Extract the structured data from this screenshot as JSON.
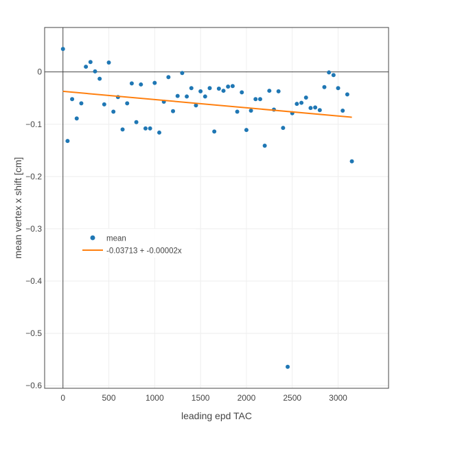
{
  "chart_data": {
    "type": "scatter",
    "title": "",
    "xlabel": "leading epd TAC",
    "ylabel": "mean vertex x shift [cm]",
    "xlim": [
      -200,
      3550
    ],
    "ylim": [
      -0.605,
      0.085
    ],
    "x_ticks": [
      0,
      500,
      1000,
      1500,
      2000,
      2500,
      3000
    ],
    "y_ticks": [
      0,
      -0.1,
      -0.2,
      -0.3,
      -0.4,
      -0.5,
      -0.6
    ],
    "x_tick_labels": [
      "0",
      "500",
      "1000",
      "1500",
      "2000",
      "2500",
      "3000"
    ],
    "y_tick_labels": [
      "0",
      "−0.1",
      "−0.2",
      "−0.3",
      "−0.4",
      "−0.5",
      "−0.6"
    ],
    "grid": true,
    "zero_lines": true,
    "legend_position": "left-middle",
    "series": [
      {
        "name": "mean",
        "mode": "markers",
        "color": "#1f77b4",
        "x": [
          0,
          50,
          100,
          150,
          200,
          250,
          300,
          350,
          400,
          450,
          500,
          550,
          600,
          650,
          700,
          750,
          800,
          850,
          900,
          950,
          1000,
          1050,
          1100,
          1150,
          1200,
          1250,
          1300,
          1350,
          1400,
          1450,
          1500,
          1550,
          1600,
          1650,
          1700,
          1750,
          1800,
          1850,
          1900,
          1950,
          2000,
          2050,
          2100,
          2150,
          2200,
          2250,
          2300,
          2350,
          2400,
          2450,
          2500,
          2550,
          2600,
          2650,
          2700,
          2750,
          2800,
          2850,
          2900,
          2950,
          3000,
          3050,
          3100,
          3150
        ],
        "y": [
          0.044,
          -0.132,
          -0.052,
          -0.089,
          -0.06,
          0.01,
          0.019,
          0.001,
          -0.013,
          -0.062,
          0.018,
          -0.076,
          -0.048,
          -0.11,
          -0.06,
          -0.022,
          -0.096,
          -0.024,
          -0.108,
          -0.108,
          -0.021,
          -0.116,
          -0.057,
          -0.01,
          -0.075,
          -0.046,
          -0.002,
          -0.047,
          -0.031,
          -0.064,
          -0.037,
          -0.047,
          -0.031,
          -0.114,
          -0.032,
          -0.036,
          -0.028,
          -0.027,
          -0.076,
          -0.039,
          -0.111,
          -0.074,
          -0.052,
          -0.052,
          -0.141,
          -0.036,
          -0.072,
          -0.037,
          -0.107,
          -0.564,
          -0.079,
          -0.061,
          -0.059,
          -0.049,
          -0.069,
          -0.068,
          -0.073,
          -0.029,
          -0.001,
          -0.006,
          -0.031,
          -0.074,
          -0.043,
          -0.171
        ]
      },
      {
        "name": "-0.03713 + -0.00002x",
        "mode": "lines",
        "color": "#ff7f0e",
        "x": [
          0,
          3150
        ],
        "y": [
          -0.03713,
          -0.08663
        ]
      }
    ]
  }
}
